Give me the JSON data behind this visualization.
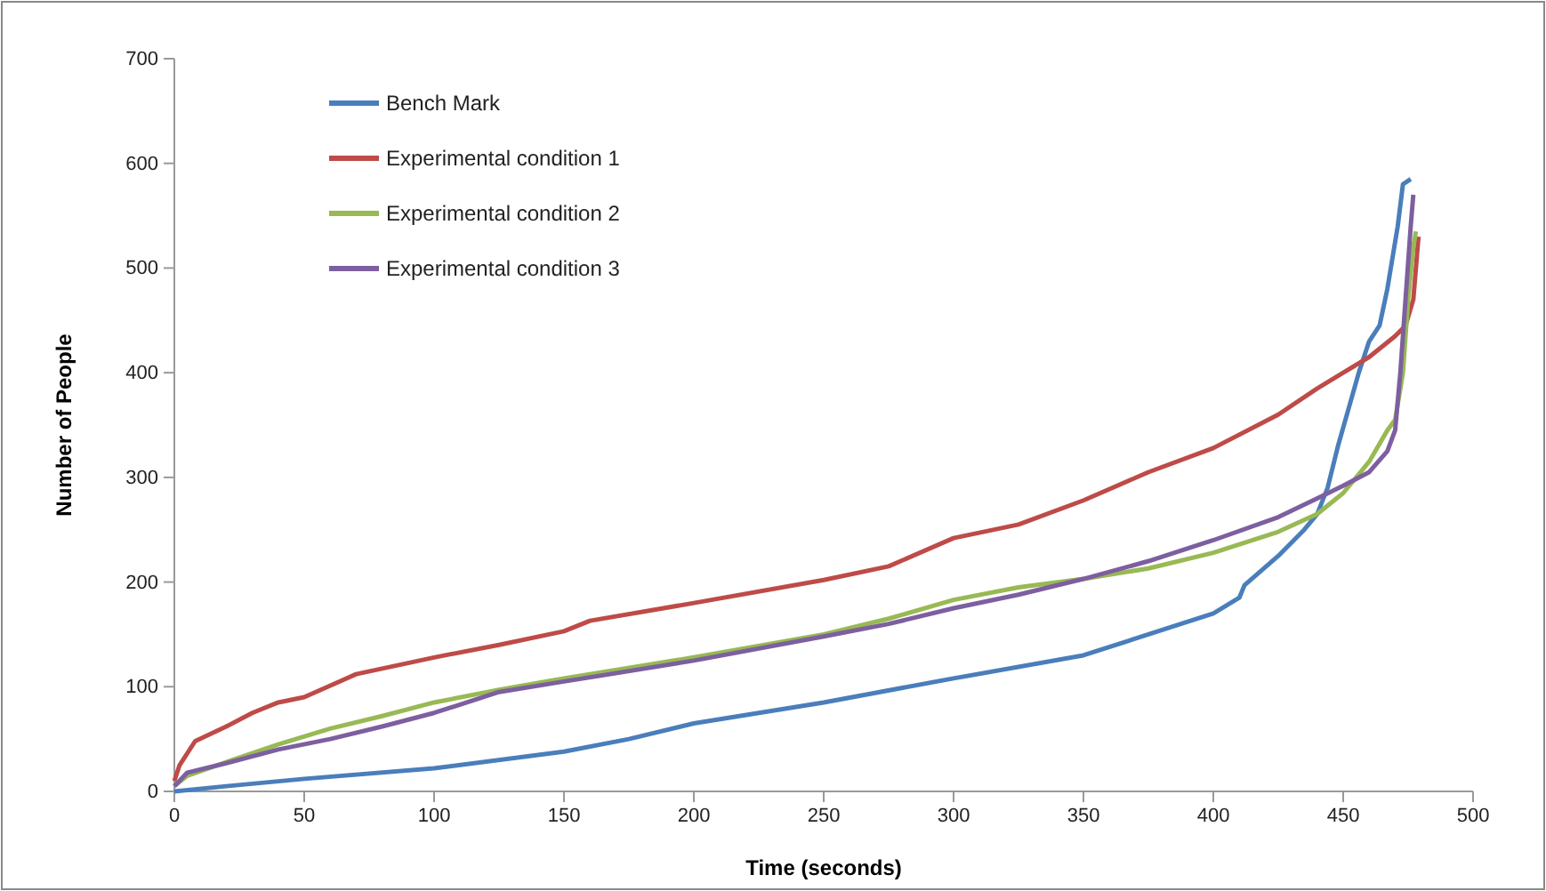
{
  "chart_data": {
    "type": "line",
    "xlabel": "Time (seconds)",
    "ylabel": "Number of People",
    "xlim": [
      0,
      500
    ],
    "xticks": [
      0,
      50,
      100,
      150,
      200,
      250,
      300,
      350,
      400,
      450,
      500
    ],
    "ylim": [
      0,
      700
    ],
    "yticks": [
      0,
      100,
      200,
      300,
      400,
      500,
      600,
      700
    ],
    "legend": "top left",
    "grid": false,
    "marker": "none",
    "line_style": "solid",
    "series": [
      {
        "name": "Bench Mark",
        "color": "#4a7ebb",
        "x": [
          0,
          20,
          50,
          100,
          150,
          175,
          200,
          250,
          300,
          350,
          375,
          400,
          410,
          412,
          425,
          435,
          440,
          444,
          448,
          452,
          456,
          460,
          464,
          467,
          469,
          471,
          473,
          476
        ],
        "values": [
          0,
          5,
          12,
          22,
          38,
          50,
          65,
          85,
          108,
          130,
          150,
          170,
          185,
          197,
          225,
          250,
          265,
          290,
          330,
          365,
          400,
          430,
          445,
          480,
          510,
          540,
          580,
          585
        ]
      },
      {
        "name": "Experimental condition 1",
        "color": "#be4b48",
        "x": [
          0,
          2,
          8,
          20,
          30,
          40,
          50,
          70,
          100,
          125,
          150,
          160,
          200,
          250,
          275,
          300,
          325,
          350,
          375,
          400,
          425,
          440,
          450,
          460,
          470,
          474,
          477,
          478,
          479
        ],
        "values": [
          10,
          25,
          48,
          62,
          75,
          85,
          90,
          112,
          128,
          140,
          153,
          163,
          180,
          202,
          215,
          242,
          255,
          278,
          305,
          328,
          360,
          385,
          400,
          415,
          435,
          445,
          470,
          500,
          530
        ]
      },
      {
        "name": "Experimental condition 2",
        "color": "#98b954",
        "x": [
          0,
          5,
          20,
          40,
          60,
          80,
          100,
          125,
          150,
          200,
          250,
          275,
          300,
          325,
          350,
          375,
          400,
          425,
          440,
          450,
          460,
          467,
          470,
          473,
          475,
          477,
          478
        ],
        "values": [
          5,
          15,
          28,
          45,
          60,
          72,
          85,
          97,
          108,
          128,
          150,
          165,
          183,
          195,
          203,
          213,
          228,
          248,
          265,
          285,
          315,
          345,
          355,
          400,
          470,
          520,
          535
        ]
      },
      {
        "name": "Experimental condition 3",
        "color": "#7d5fa0",
        "x": [
          0,
          5,
          20,
          40,
          60,
          80,
          100,
          125,
          150,
          200,
          250,
          275,
          300,
          325,
          350,
          375,
          400,
          425,
          440,
          450,
          460,
          467,
          470,
          472,
          474,
          476,
          477
        ],
        "values": [
          5,
          18,
          27,
          40,
          50,
          62,
          75,
          95,
          105,
          125,
          148,
          160,
          175,
          188,
          203,
          220,
          240,
          262,
          280,
          292,
          305,
          325,
          345,
          400,
          470,
          540,
          570
        ]
      }
    ]
  }
}
